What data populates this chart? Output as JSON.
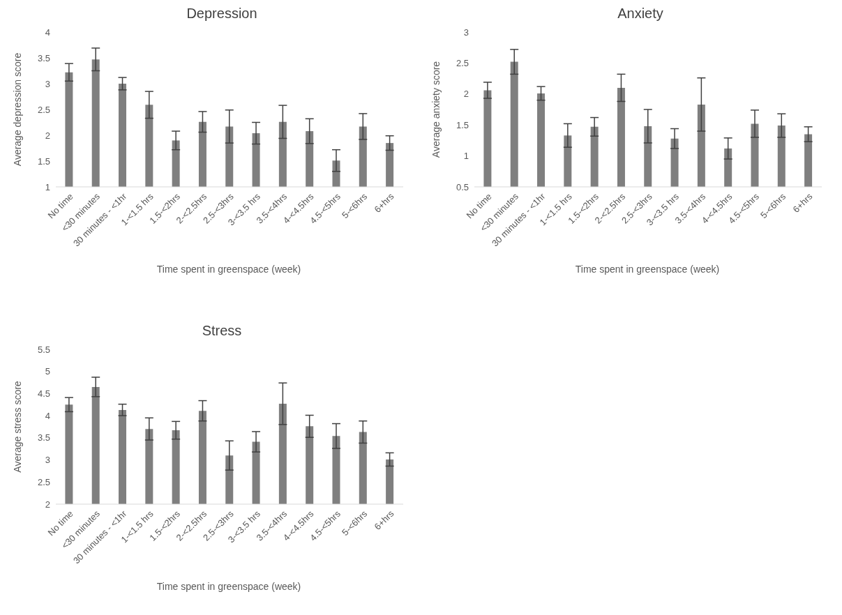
{
  "chart_data": [
    {
      "type": "bar",
      "title": "Depression",
      "xlabel": "Time spent in greenspace (week)",
      "ylabel": "Average depression score",
      "categories": [
        "No time",
        "<30 minutes",
        "30 minutes - <1hr",
        "1-<1.5 hrs",
        "1.5-<2hrs",
        "2-<2.5hrs",
        "2.5-<3hrs",
        "3-<3.5 hrs",
        "3.5-<4hrs",
        "4-<4.5hrs",
        "4.5-<5hrs",
        "5-<6hrs",
        "6+hrs"
      ],
      "values": [
        3.22,
        3.47,
        3.0,
        2.59,
        1.9,
        2.26,
        2.17,
        2.04,
        2.26,
        2.08,
        1.51,
        2.17,
        1.85
      ],
      "errors": [
        0.17,
        0.22,
        0.12,
        0.26,
        0.18,
        0.2,
        0.32,
        0.21,
        0.32,
        0.24,
        0.21,
        0.25,
        0.14
      ],
      "color": "#7f7f7f",
      "ylim": [
        1,
        4
      ],
      "yticks": [
        1,
        1.5,
        2,
        2.5,
        3,
        3.5,
        4
      ],
      "grid": false,
      "legend": false
    },
    {
      "type": "bar",
      "title": "Anxiety",
      "xlabel": "Time spent in greenspace (week)",
      "ylabel": "Average anxiety score",
      "categories": [
        "No time",
        "<30 minutes",
        "30 minutes - <1hr",
        "1-<1.5 hrs",
        "1.5-<2hrs",
        "2-<2.5hrs",
        "2.5-<3hrs",
        "3-<3.5 hrs",
        "3.5-<4hrs",
        "4-<4.5hrs",
        "4.5-<5hrs",
        "5-<6hrs",
        "6+hrs"
      ],
      "values": [
        2.06,
        2.52,
        2.01,
        1.33,
        1.47,
        2.1,
        1.48,
        1.28,
        1.83,
        1.12,
        1.52,
        1.49,
        1.35
      ],
      "errors": [
        0.13,
        0.2,
        0.11,
        0.19,
        0.15,
        0.22,
        0.27,
        0.16,
        0.43,
        0.17,
        0.22,
        0.19,
        0.12
      ],
      "color": "#7f7f7f",
      "ylim": [
        0.5,
        3
      ],
      "yticks": [
        0.5,
        1,
        1.5,
        2,
        2.5,
        3
      ],
      "grid": false,
      "legend": false
    },
    {
      "type": "bar",
      "title": "Stress",
      "xlabel": "Time spent in greenspace (week)",
      "ylabel": "Average stress score",
      "categories": [
        "No time",
        "<30 minutes",
        "30 minutes - <1hr",
        "1-<1.5 hrs",
        "1.5-<2hrs",
        "2-<2.5hrs",
        "2.5-<3hrs",
        "3-<3.5 hrs",
        "3.5-<4hrs",
        "4-<4.5hrs",
        "4.5-<5hrs",
        "5-<6hrs",
        "6+hrs"
      ],
      "values": [
        4.25,
        4.65,
        4.13,
        3.7,
        3.67,
        4.11,
        3.1,
        3.41,
        4.27,
        3.76,
        3.54,
        3.63,
        3.01
      ],
      "errors": [
        0.16,
        0.22,
        0.13,
        0.25,
        0.2,
        0.23,
        0.33,
        0.23,
        0.47,
        0.25,
        0.28,
        0.25,
        0.15
      ],
      "color": "#7f7f7f",
      "ylim": [
        2,
        5.5
      ],
      "yticks": [
        2,
        2.5,
        3,
        3.5,
        4,
        4.5,
        5,
        5.5
      ],
      "grid": false,
      "legend": false
    }
  ]
}
